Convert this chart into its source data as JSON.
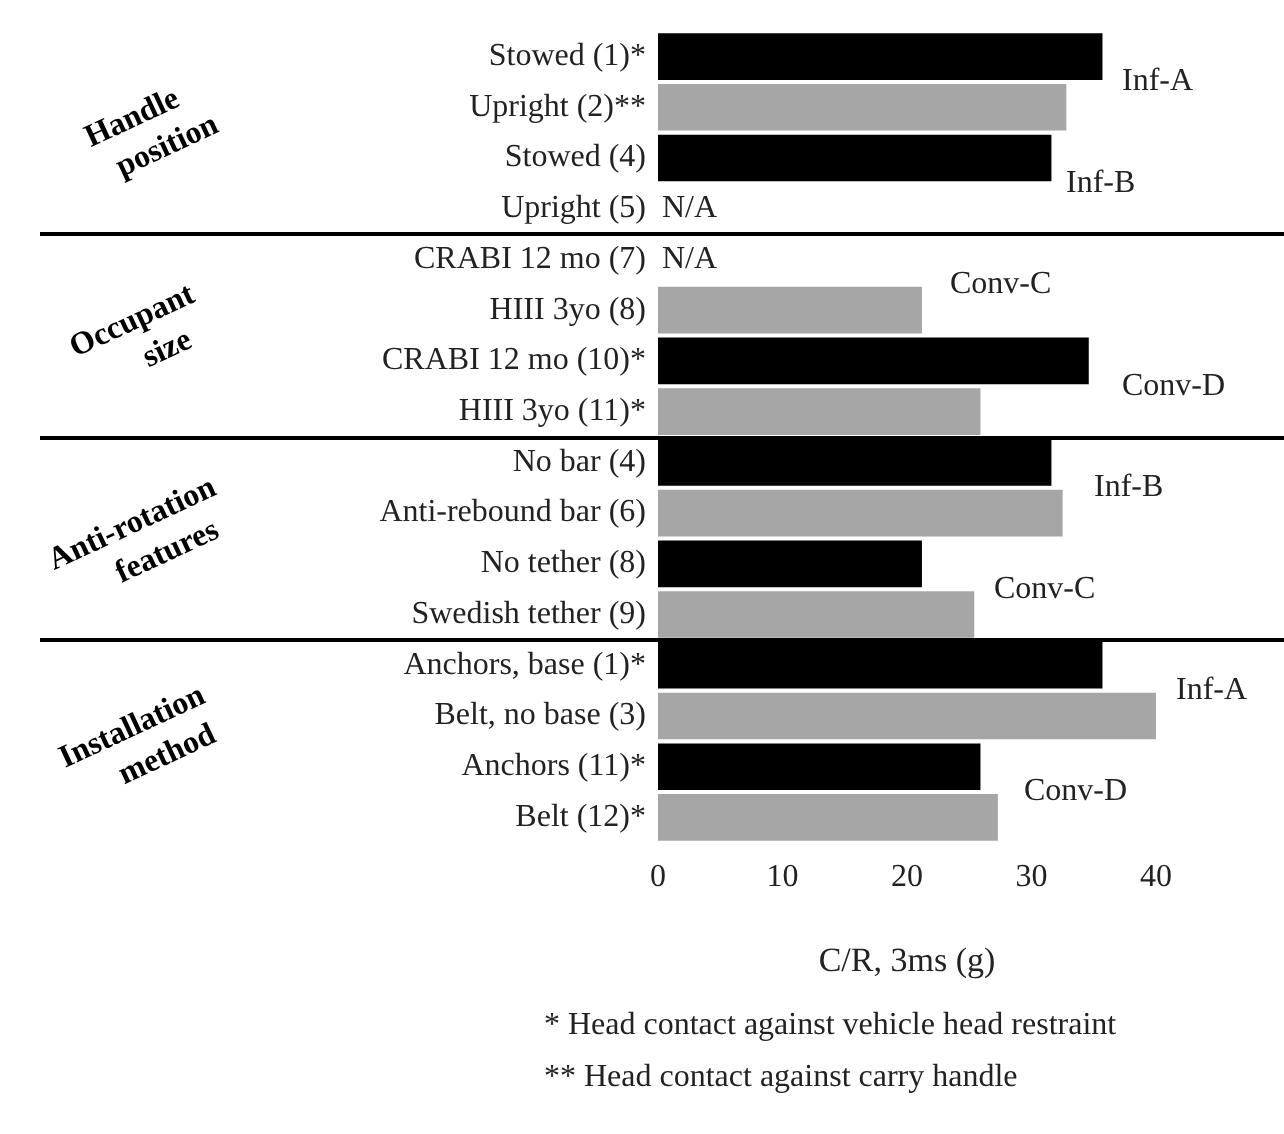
{
  "chart_data": {
    "type": "bar",
    "orientation": "horizontal",
    "xlabel": "C/R, 3ms (g)",
    "categories": [
      "Stowed (1)*",
      "Upright (2)**",
      "Stowed (4)",
      "Upright (5)",
      "CRABI 12 mo (7)",
      "HIII 3yo (8)",
      "CRABI 12 mo (10)*",
      "HIII 3yo (11)*",
      "No bar (4)",
      "Anti-rebound bar (6)",
      "No tether (8)",
      "Swedish tether (9)",
      "Anchors, base (1)*",
      "Belt, no base (3)",
      "Anchors (11)*",
      "Belt (12)*"
    ],
    "values": [
      35.7,
      32.8,
      31.6,
      null,
      null,
      21.2,
      34.6,
      25.9,
      31.6,
      32.5,
      21.2,
      25.4,
      35.7,
      40,
      25.9,
      27.3
    ],
    "colors": [
      "#000000",
      "#a6a6a6",
      "#000000",
      "#a6a6a6",
      "#000000",
      "#a6a6a6",
      "#000000",
      "#a6a6a6",
      "#000000",
      "#a6a6a6",
      "#000000",
      "#a6a6a6",
      "#000000",
      "#a6a6a6",
      "#000000",
      "#a6a6a6"
    ],
    "xlim": [
      0,
      40
    ],
    "xticks": [
      0,
      10,
      20,
      30,
      40
    ],
    "grid": false,
    "legend": false,
    "annotations": [
      "Handle position",
      "Occupant size",
      "Anti-rotation features",
      "Installation method",
      "Inf-A",
      "Inf-B",
      "N/A",
      "N/A",
      "Conv-C",
      "Conv-D",
      "Inf-B",
      "Conv-C",
      "Inf-A",
      "Conv-D",
      "* Head contact against vehicle head restraint",
      "** Head contact against carry handle"
    ]
  }
}
